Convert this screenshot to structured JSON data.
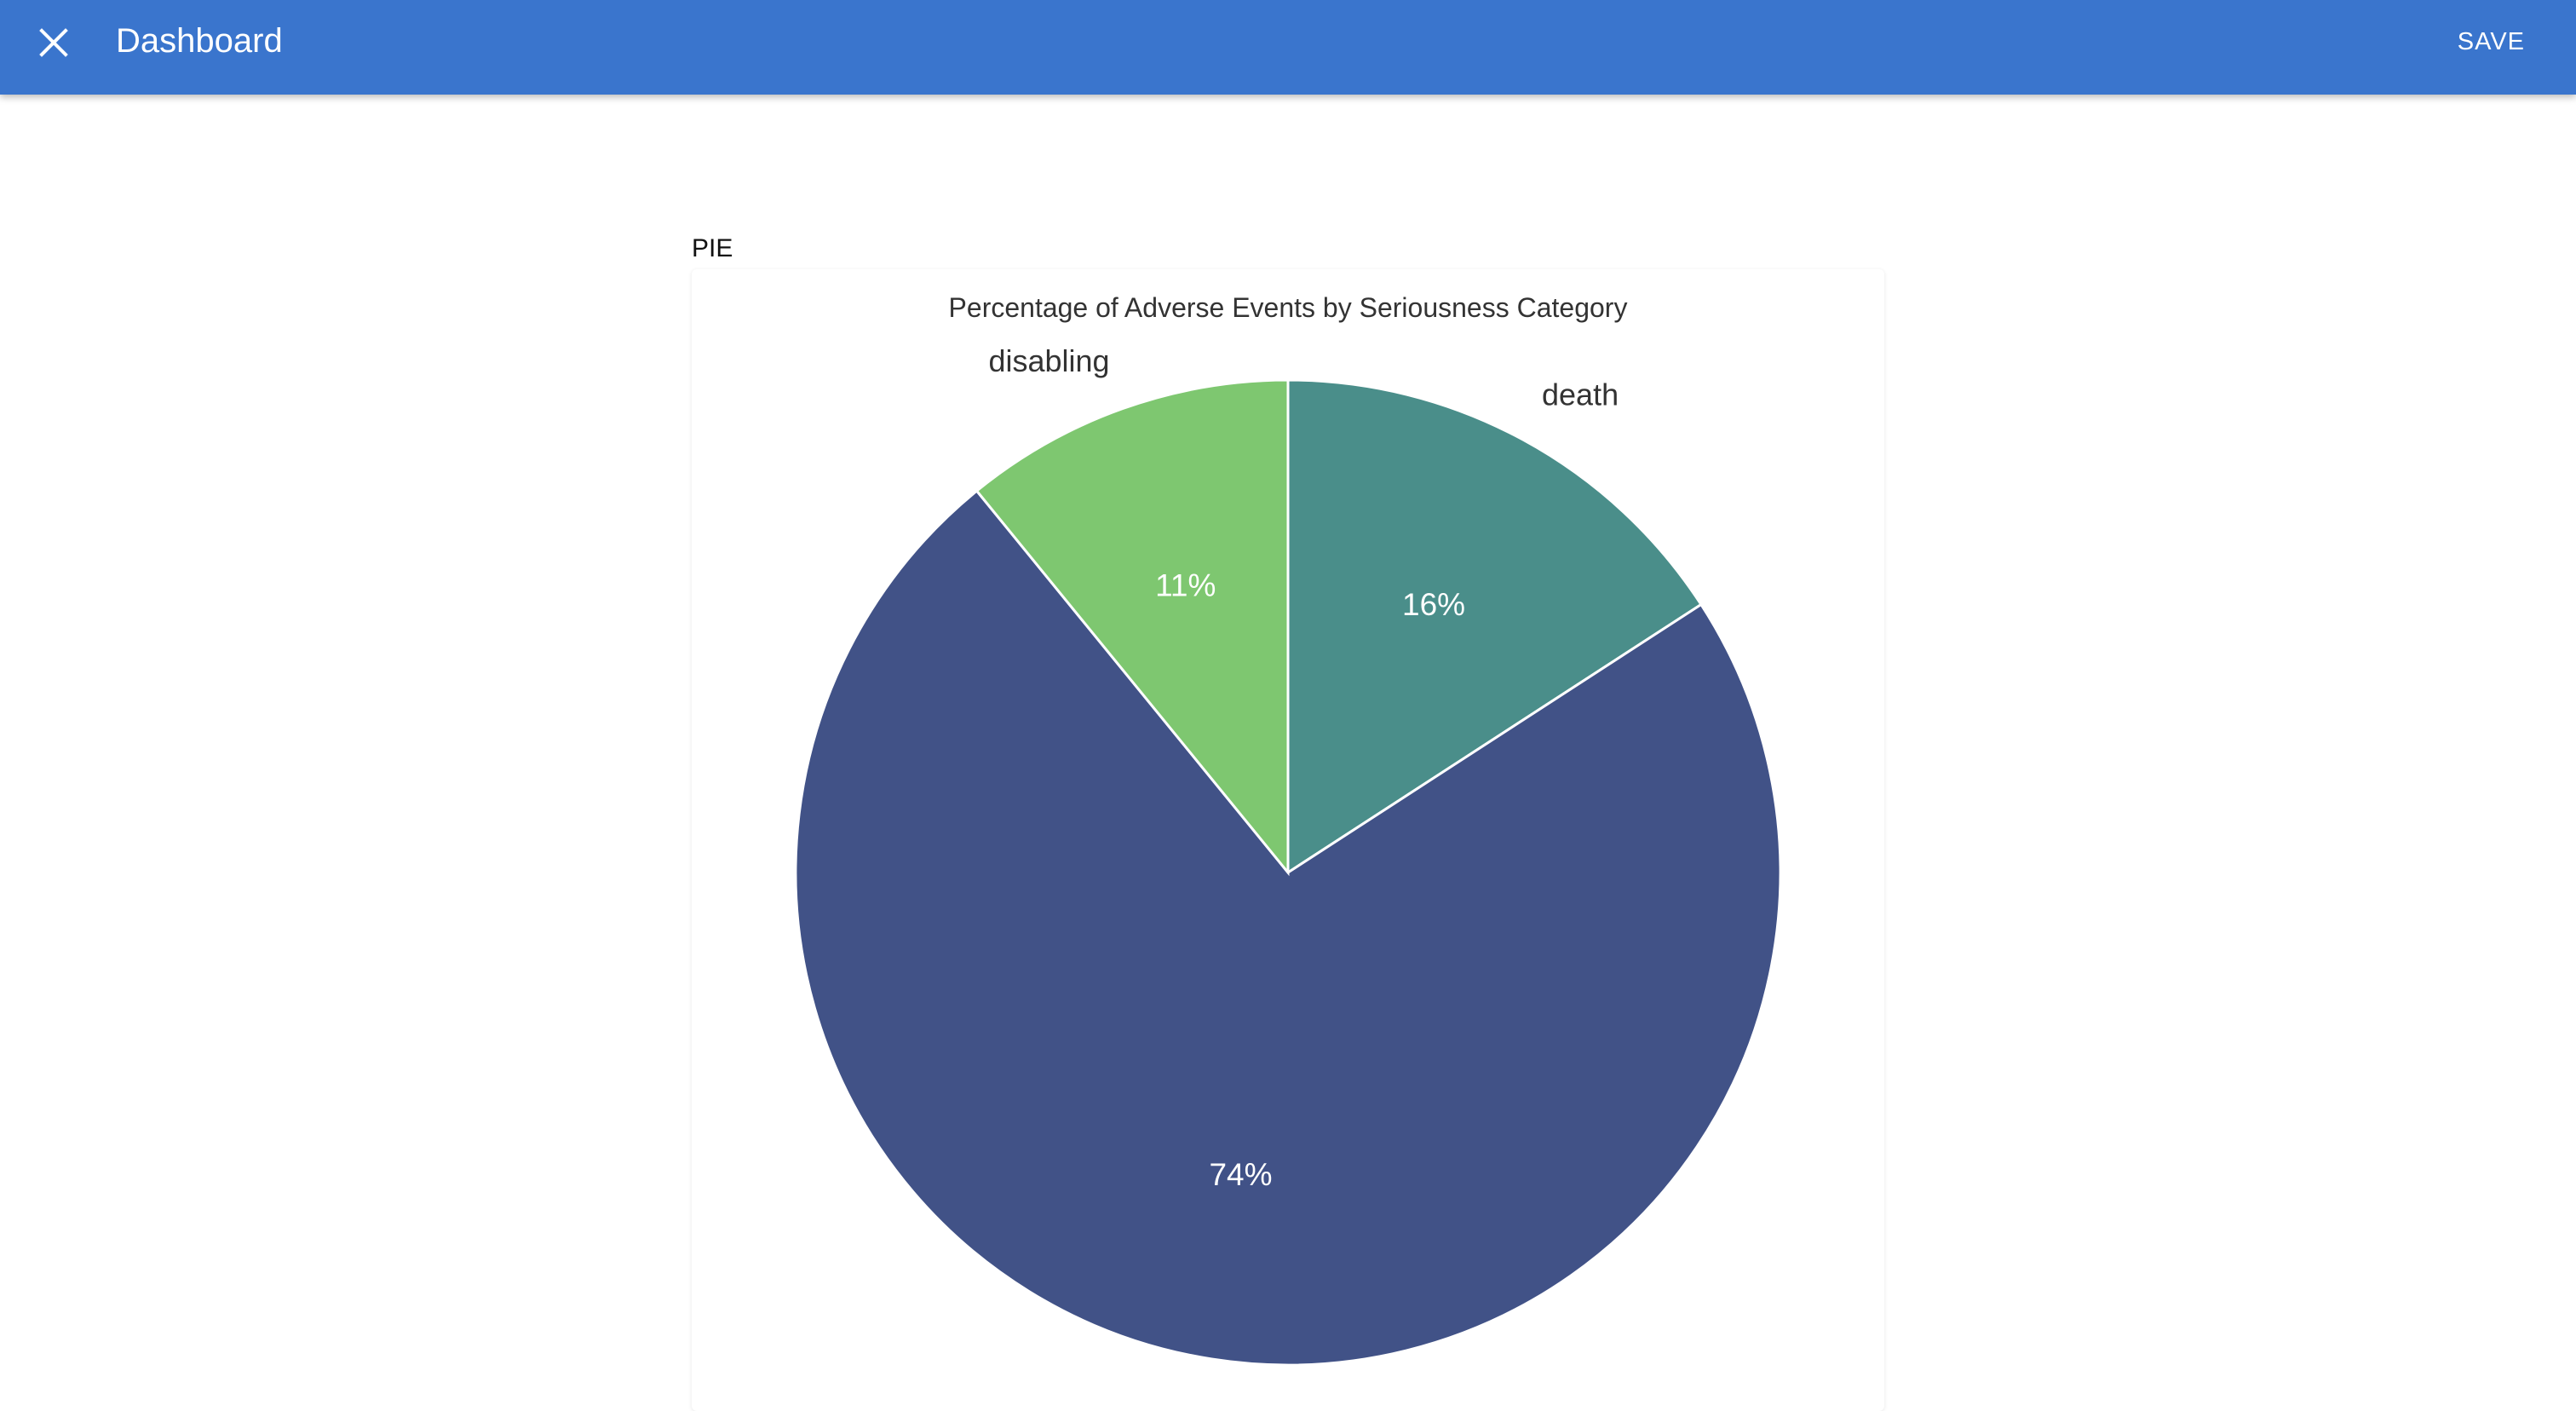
{
  "header": {
    "close_icon": "close-icon",
    "title": "Dashboard",
    "save_label": "SAVE",
    "background_color": "#3a75cd"
  },
  "section": {
    "label": "PIE"
  },
  "chart_data": {
    "type": "pie",
    "title": "Percentage of Adverse Events by Seriousness Category",
    "start_angle_deg": 0,
    "slices": [
      {
        "label": "death",
        "value": 16,
        "display": "16%",
        "color": "#4a8e8a",
        "show_name": true
      },
      {
        "label": "",
        "value": 74,
        "display": "74%",
        "color": "#415287",
        "show_name": false
      },
      {
        "label": "disabling",
        "value": 11,
        "display": "11%",
        "color": "#7ec770",
        "show_name": true
      }
    ]
  }
}
